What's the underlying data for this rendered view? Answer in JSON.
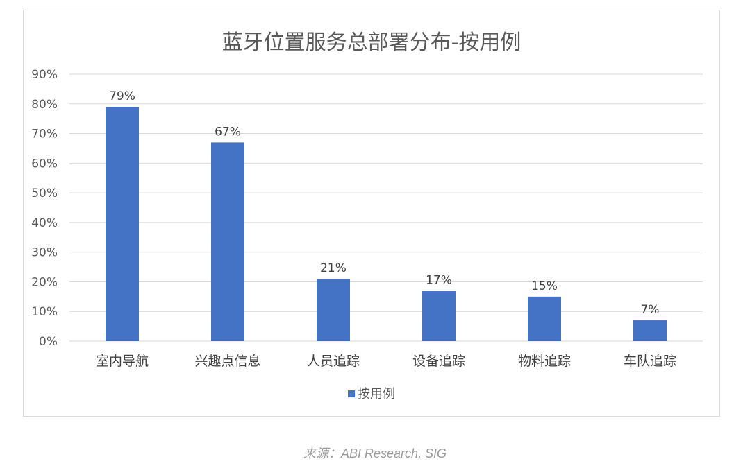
{
  "chart_data": {
    "type": "bar",
    "title": "蓝牙位置服务总部署分布-按用例",
    "categories": [
      "室内导航",
      "兴趣点信息",
      "人员追踪",
      "设备追踪",
      "物料追踪",
      "车队追踪"
    ],
    "series": [
      {
        "name": "按用例",
        "values": [
          79,
          67,
          21,
          17,
          15,
          7
        ],
        "data_labels": [
          "79%",
          "67%",
          "21%",
          "17%",
          "15%",
          "7%"
        ]
      }
    ],
    "xlabel": "",
    "ylabel": "",
    "ylim": [
      0,
      90
    ],
    "yticks": [
      0,
      10,
      20,
      30,
      40,
      50,
      60,
      70,
      80,
      90
    ],
    "ytick_labels": [
      "0%",
      "10%",
      "20%",
      "30%",
      "40%",
      "50%",
      "60%",
      "70%",
      "80%",
      "90%"
    ],
    "grid": true,
    "legend_position": "bottom",
    "bar_color": "#4472c4",
    "grid_color": "#d9d9d9"
  },
  "source_text": "来源：ABI Research, SIG"
}
